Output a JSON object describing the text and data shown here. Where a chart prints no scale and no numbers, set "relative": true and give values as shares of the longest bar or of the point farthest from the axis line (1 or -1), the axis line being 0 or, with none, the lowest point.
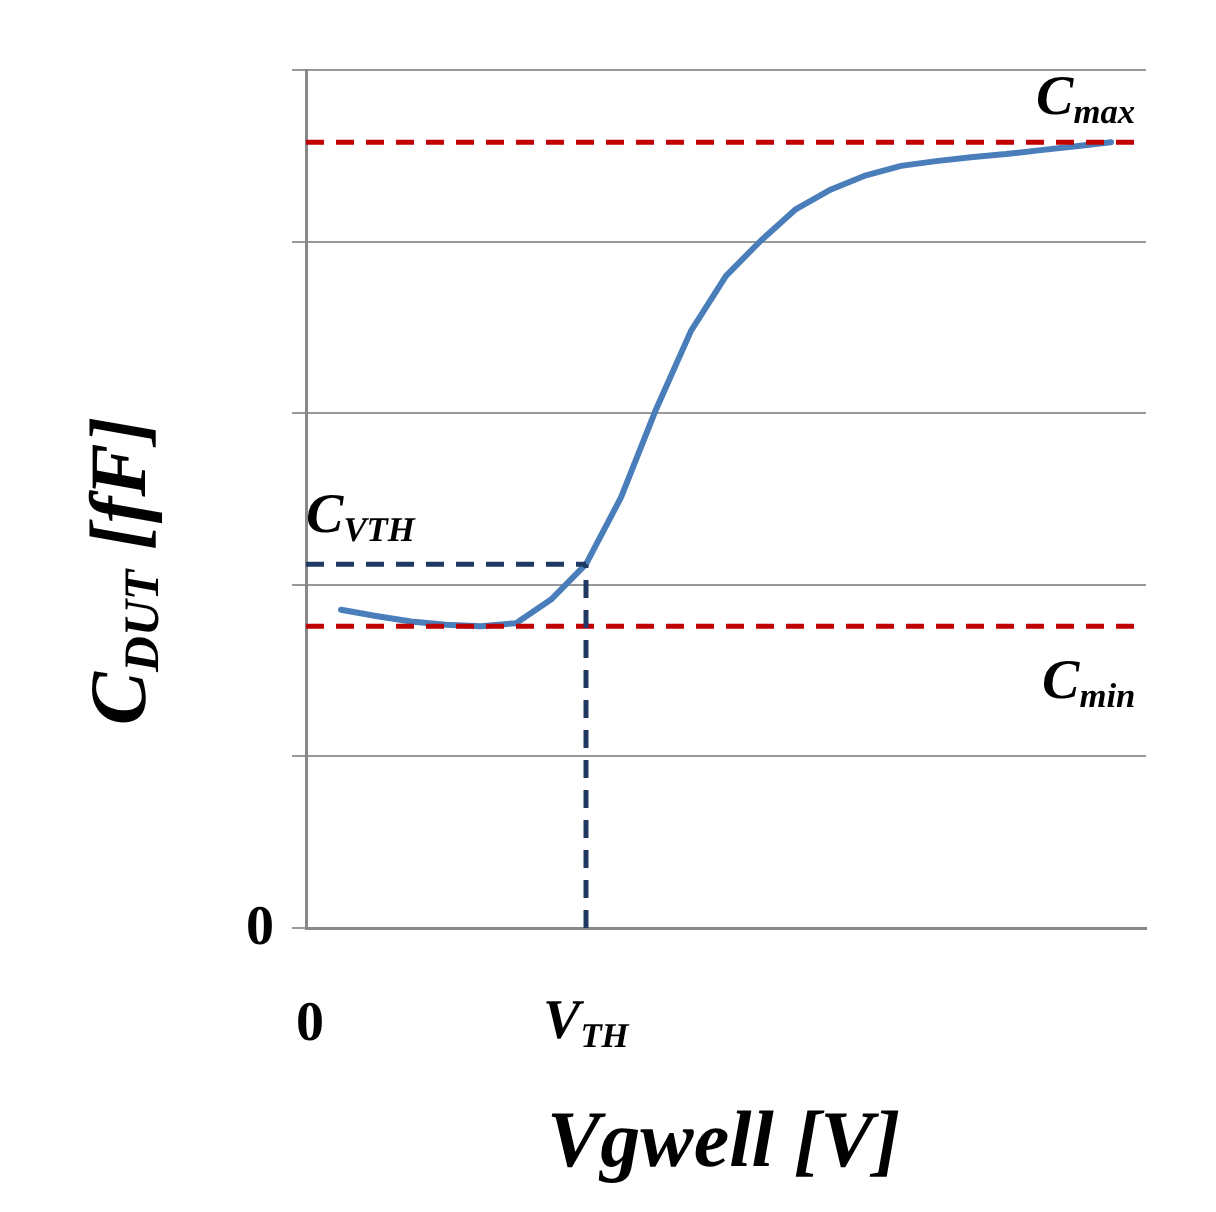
{
  "chart_data": {
    "type": "line",
    "relative": true,
    "xlabel": "Vgwell  [V]",
    "ylabel": "C$_{DUT}$  [fF]",
    "categories": [
      "0",
      null,
      null,
      null,
      null,
      null,
      null,
      null,
      "V$_{TH}$",
      null,
      null,
      null,
      null,
      null,
      null,
      null,
      null,
      null,
      null,
      null,
      null,
      null,
      null,
      null,
      null
    ],
    "grid": "y",
    "marker": "none",
    "series": [
      {
        "color": "#4a7ebb",
        "line_style": "solid",
        "values": [
          null,
          0.405,
          0.397,
          0.39,
          0.386,
          0.384,
          0.388,
          0.418,
          0.463,
          0.548,
          0.66,
          0.76,
          0.83,
          0.875,
          0.915,
          0.94,
          0.958,
          0.97,
          0.976,
          0.981,
          0.985,
          0.99,
          0.995,
          1.0,
          null
        ]
      }
    ],
    "ref_lines": [
      {
        "axis": "y",
        "value": 1.0,
        "label": "C$_{max}$",
        "color": "#c00000",
        "line_style": "dashed"
      },
      {
        "axis": "y",
        "value": 0.384,
        "label": "C$_{min}$",
        "color": "#c00000",
        "line_style": "dashed"
      },
      {
        "axis": "y",
        "value": 0.463,
        "label": "C$_{VTH}$",
        "color": "#1f3864",
        "line_style": "dashed"
      },
      {
        "axis": "x",
        "value": "V$_{TH}$",
        "color": "#1f3864",
        "line_style": "dashed"
      }
    ],
    "annotations": [
      "0"
    ]
  }
}
